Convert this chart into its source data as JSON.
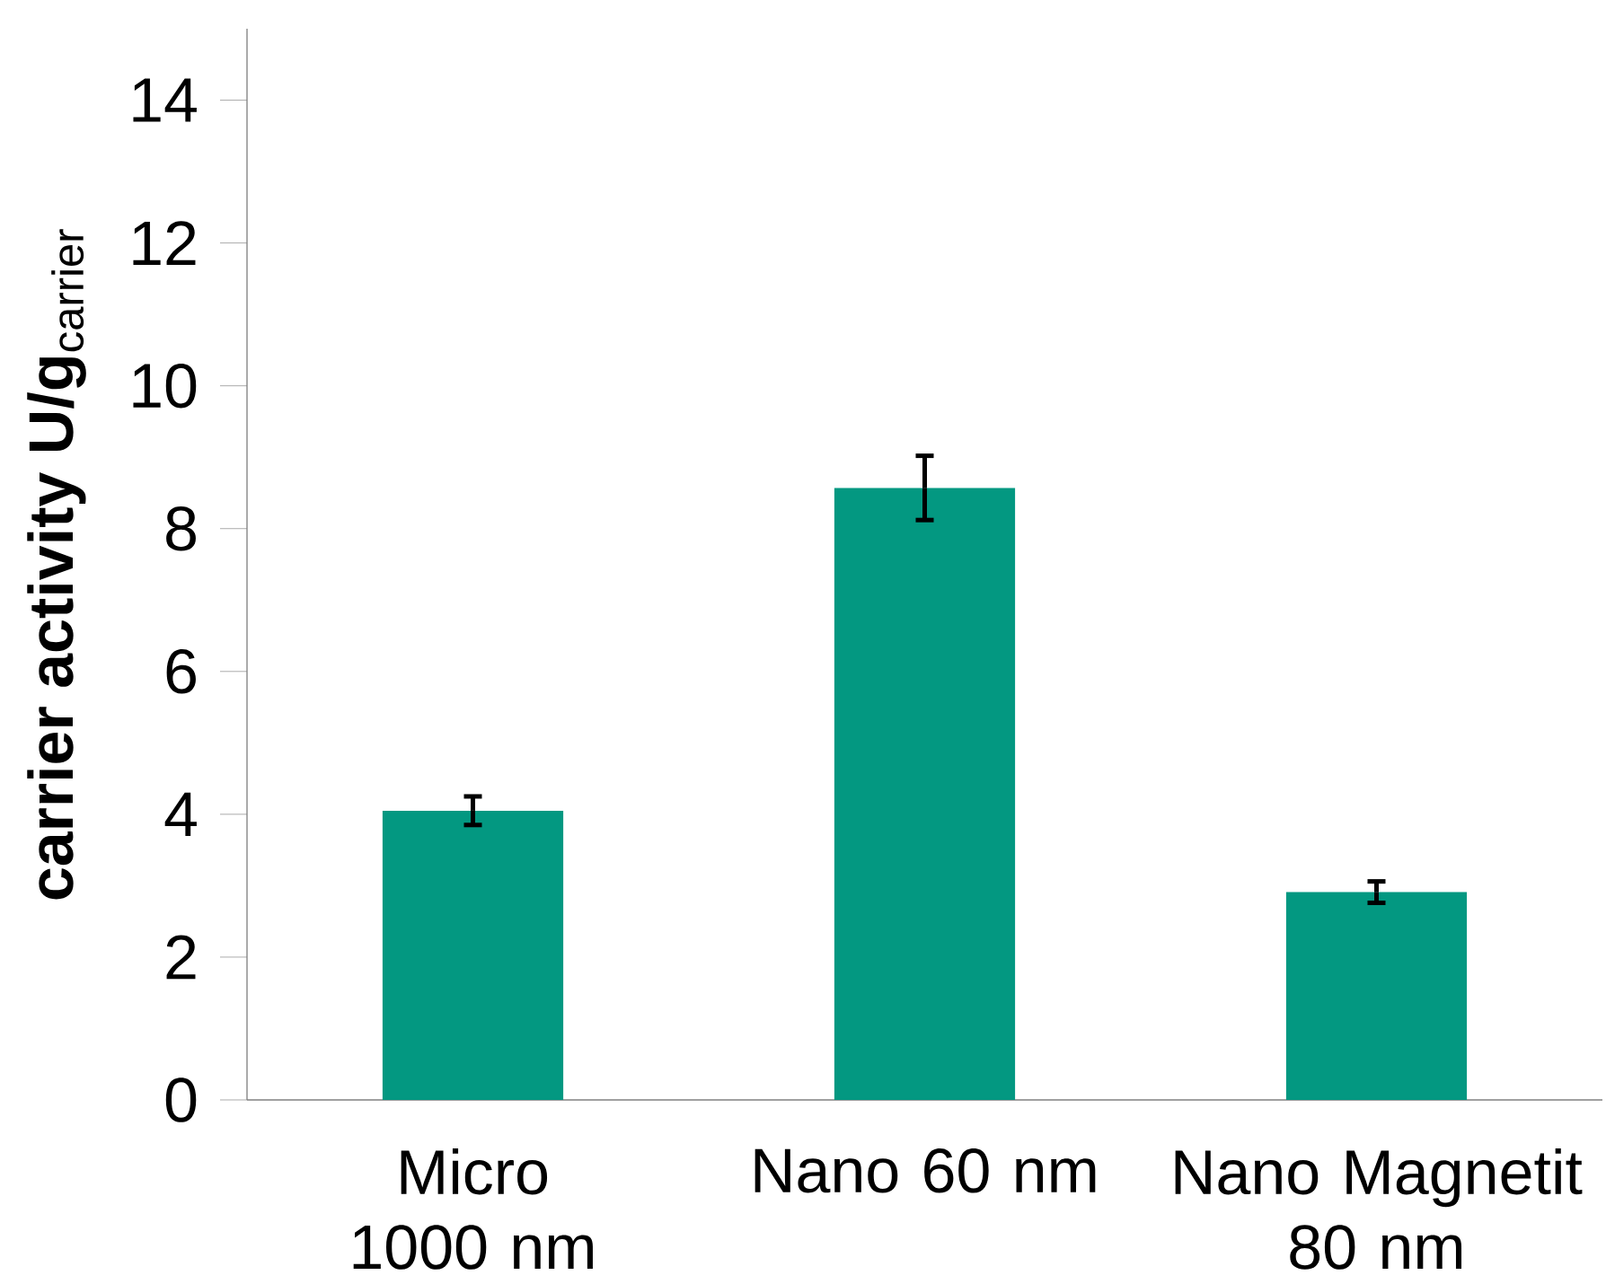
{
  "chart_data": {
    "type": "bar",
    "ylabel": "**carrier activity U/g**$_{carrier}$",
    "categories": [
      "Micro 1000 nm",
      "Nano 60 nm",
      "Nano Magnetit 80 nm"
    ],
    "values": [
      4.05,
      8.57,
      2.91
    ],
    "errors": [
      0.2,
      0.45,
      0.15
    ],
    "color": "#039881",
    "ylim": [
      0,
      15
    ],
    "yticks": [
      0,
      2,
      4,
      6,
      8,
      10,
      12,
      14
    ],
    "grid": false
  }
}
